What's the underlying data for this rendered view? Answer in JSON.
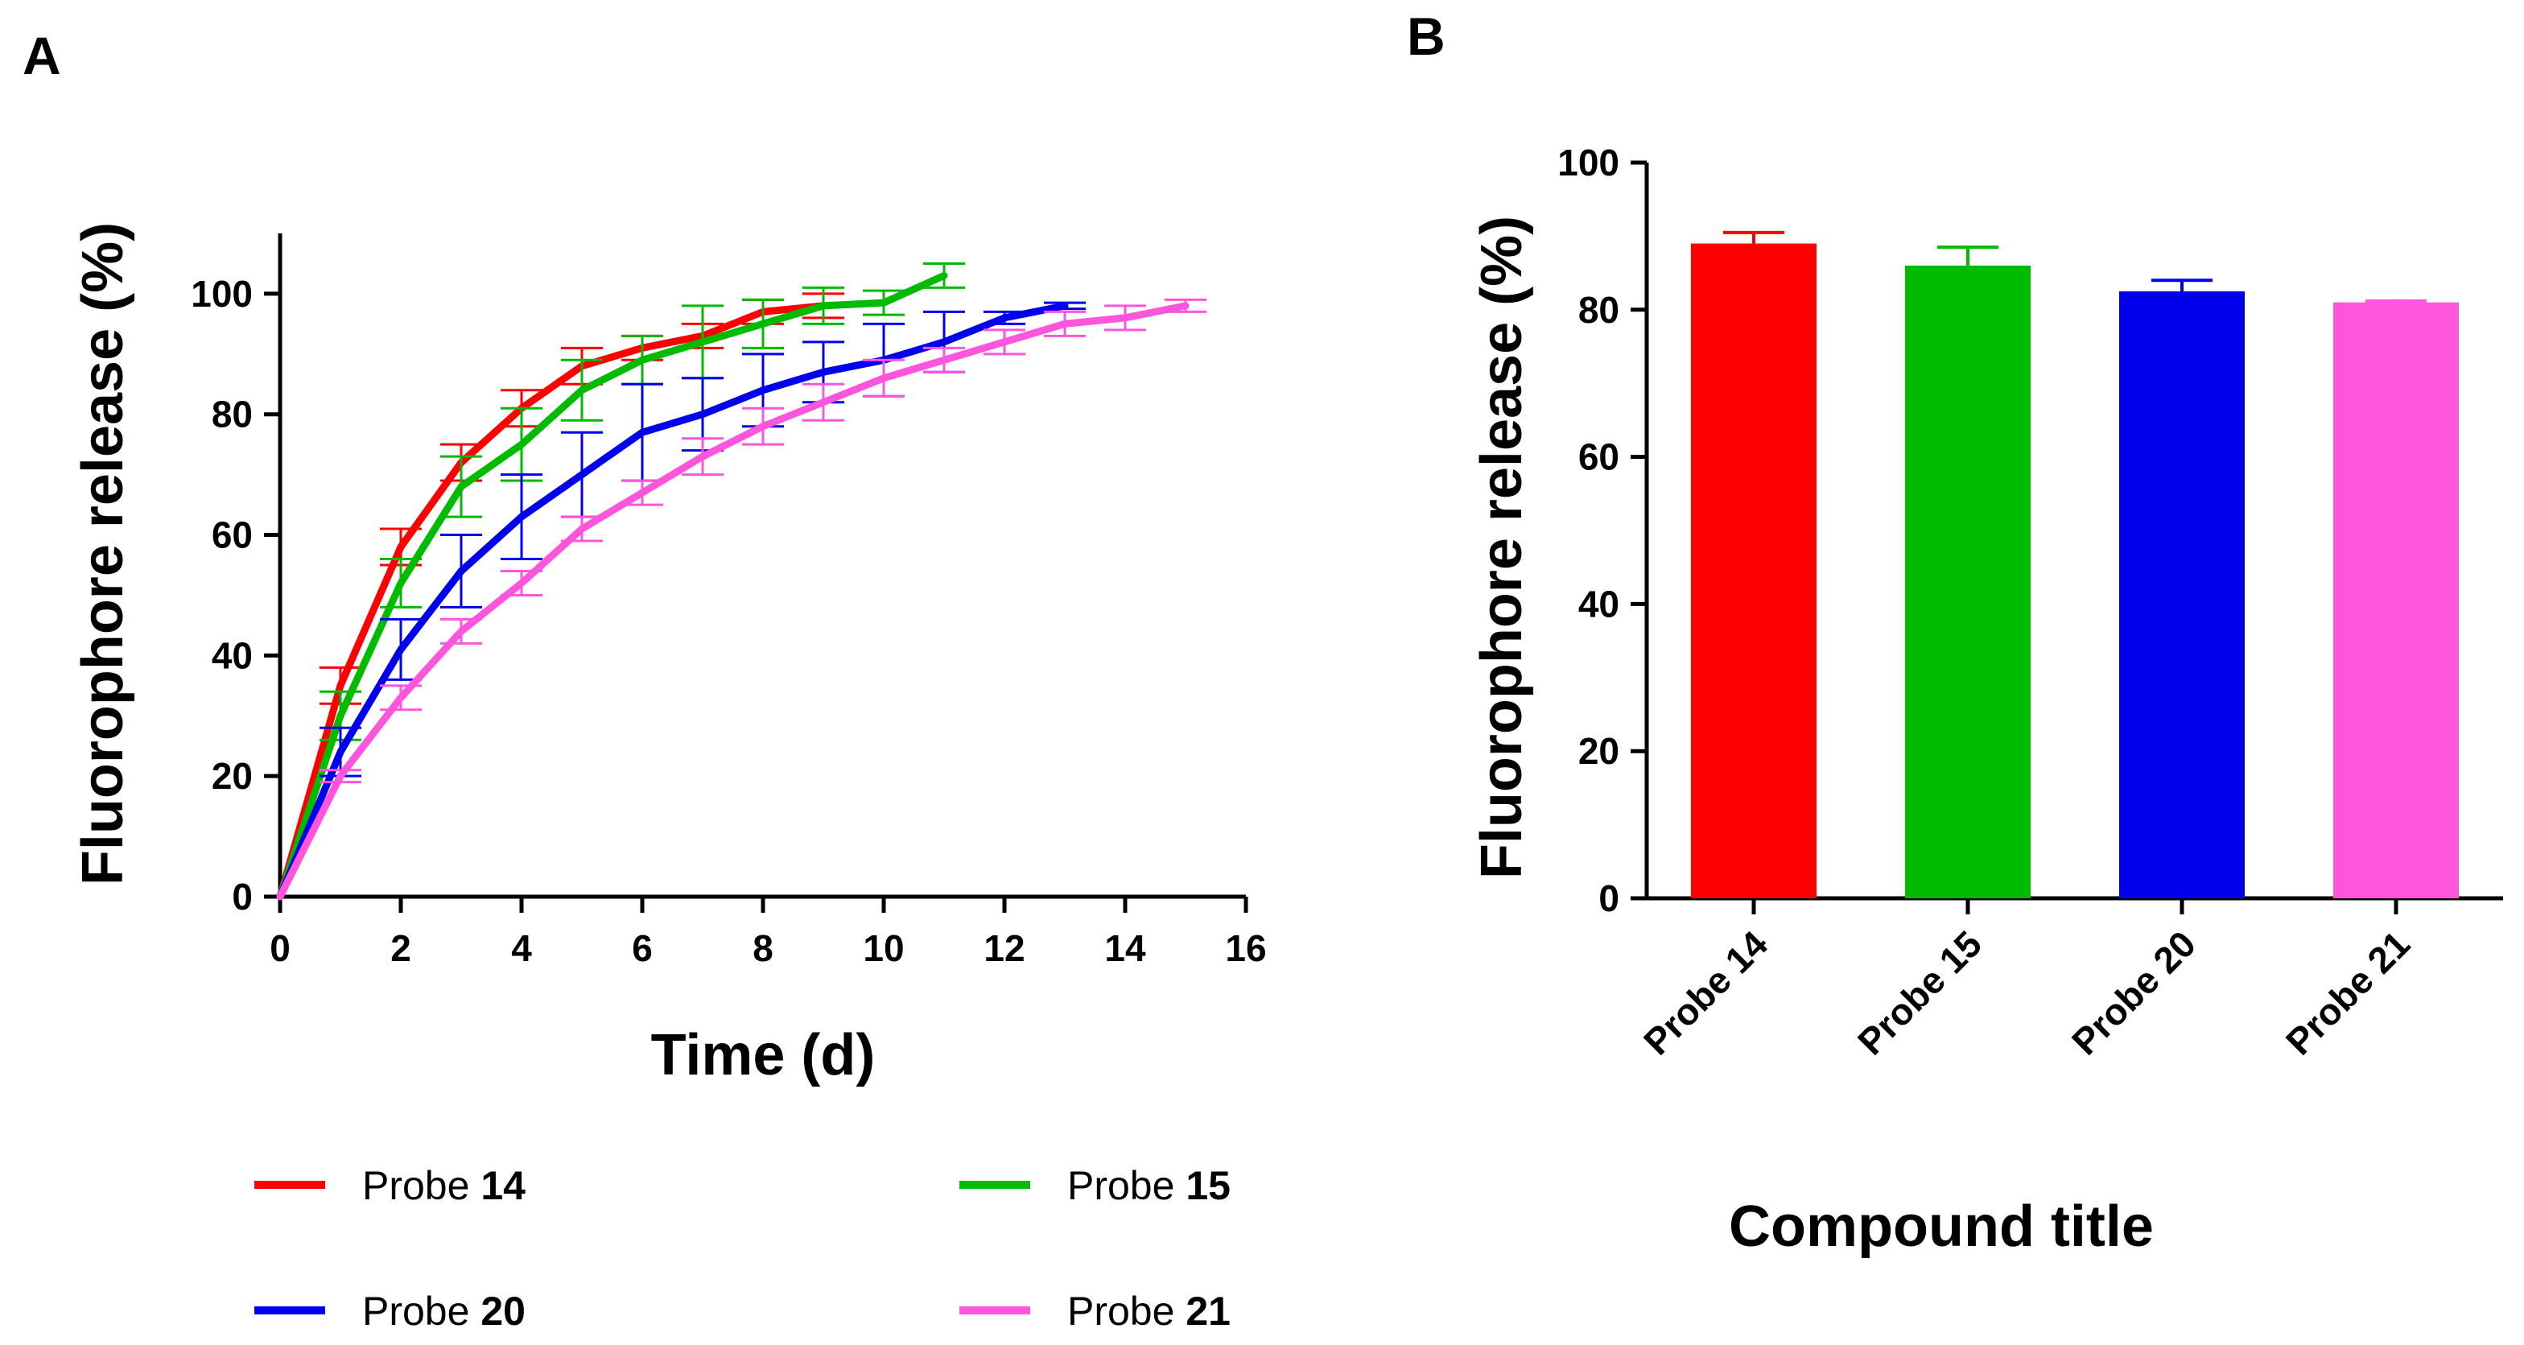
{
  "chart_data": [
    {
      "panel": "A",
      "type": "line",
      "xlabel": "Time (d)",
      "ylabel": "Fluorophore release (%)",
      "xlim": [
        0,
        16
      ],
      "ylim": [
        0,
        110
      ],
      "xticks": [
        0,
        2,
        4,
        6,
        8,
        10,
        12,
        14,
        16
      ],
      "yticks": [
        0,
        20,
        40,
        60,
        80,
        100
      ],
      "series": [
        {
          "name": "Probe",
          "number": "14",
          "color": "#ff0000",
          "x": [
            0,
            1,
            2,
            3,
            4,
            5,
            6,
            7,
            8,
            9
          ],
          "y": [
            0,
            35,
            58,
            72,
            81,
            88,
            91,
            93,
            97,
            98
          ],
          "err": [
            0,
            3,
            3,
            3,
            3,
            3,
            2,
            2,
            2,
            2
          ]
        },
        {
          "name": "Probe",
          "number": "15",
          "color": "#00bb00",
          "x": [
            0,
            1,
            2,
            3,
            4,
            5,
            6,
            7,
            8,
            9,
            10,
            11
          ],
          "y": [
            0,
            30,
            52,
            68,
            75,
            84,
            89,
            92,
            95,
            98,
            98.5,
            103
          ],
          "err": [
            0,
            4,
            4,
            5,
            6,
            5,
            4,
            6,
            4,
            3,
            2,
            2
          ]
        },
        {
          "name": "Probe",
          "number": "20",
          "color": "#0000ee",
          "x": [
            0,
            1,
            2,
            3,
            4,
            5,
            6,
            7,
            8,
            9,
            10,
            11,
            12,
            13
          ],
          "y": [
            0,
            24,
            41,
            54,
            63,
            70,
            77,
            80,
            84,
            87,
            89,
            92,
            96,
            98
          ],
          "err": [
            0,
            4,
            5,
            6,
            7,
            7,
            8,
            6,
            6,
            5,
            6,
            5,
            1,
            0.5
          ]
        },
        {
          "name": "Probe",
          "number": "21",
          "color": "#ff55dd",
          "x": [
            0,
            1,
            2,
            3,
            4,
            5,
            6,
            7,
            8,
            9,
            10,
            11,
            12,
            13,
            14,
            15
          ],
          "y": [
            0,
            20,
            33,
            44,
            52,
            61,
            67,
            73,
            78,
            82,
            86,
            89,
            92,
            95,
            96,
            98
          ],
          "err": [
            0,
            1,
            2,
            2,
            2,
            2,
            2,
            3,
            3,
            3,
            3,
            2,
            2,
            2,
            2,
            1
          ]
        }
      ]
    },
    {
      "panel": "B",
      "type": "bar",
      "xlabel": "Compound title",
      "ylabel": "Fluorophore release (%)",
      "ylim": [
        0,
        100
      ],
      "yticks": [
        0,
        20,
        40,
        60,
        80,
        100
      ],
      "categories": [
        "Probe 14",
        "Probe 15",
        "Probe 20",
        "Probe 21"
      ],
      "values": [
        89,
        86,
        82.5,
        81
      ],
      "errors": [
        1.5,
        2.5,
        1.5,
        0.2
      ],
      "colors": [
        "#ff0000",
        "#00bb00",
        "#0000ee",
        "#ff55dd"
      ]
    }
  ]
}
